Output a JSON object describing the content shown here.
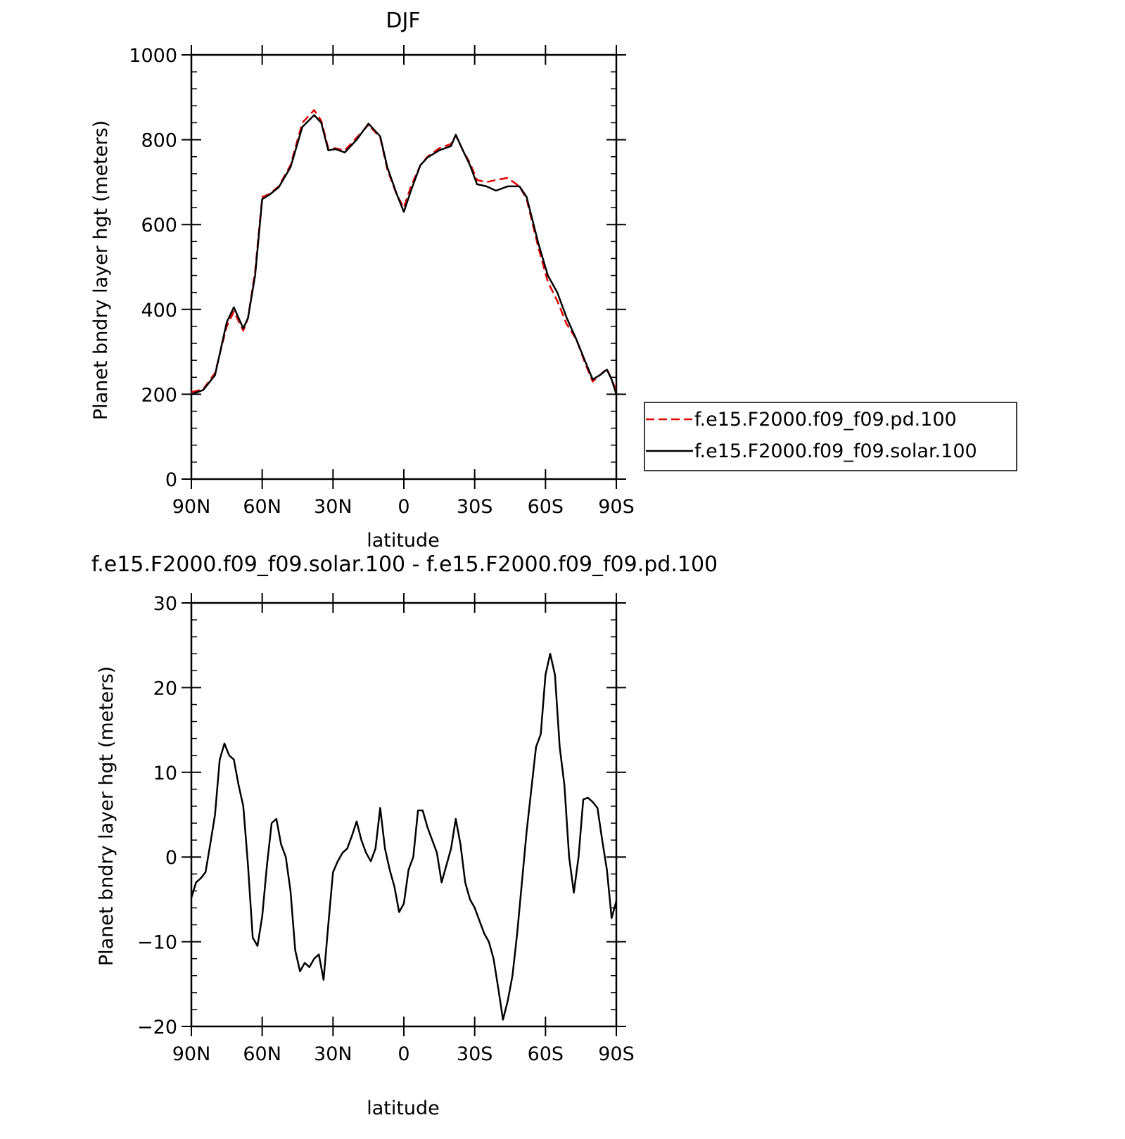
{
  "chart_data": [
    {
      "type": "line",
      "title": "DJF",
      "xlabel": "latitude",
      "ylabel": "Planet bndry layer hgt (meters)",
      "x_tick_labels": [
        "90N",
        "60N",
        "30N",
        "0",
        "30S",
        "60S",
        "90S"
      ],
      "x_tick_values": [
        90,
        60,
        30,
        0,
        -30,
        -60,
        -90
      ],
      "xlim": [
        90,
        -90
      ],
      "ylim": [
        0,
        1000
      ],
      "y_ticks": [
        0,
        200,
        400,
        600,
        800,
        1000
      ],
      "grid": false,
      "legend": "right",
      "x": [
        90,
        85,
        80,
        75,
        72,
        68,
        66,
        63,
        60,
        57,
        53,
        48,
        43,
        38,
        35,
        32,
        29,
        25,
        20,
        15,
        10,
        7,
        3,
        0,
        -3,
        -7,
        -10,
        -15,
        -20,
        -22,
        -25,
        -28,
        -31,
        -35,
        -39,
        -44,
        -49,
        -52,
        -57,
        -61,
        -65,
        -69,
        -73,
        -77,
        -80,
        -83,
        -86,
        -88,
        -90
      ],
      "series": [
        {
          "name": "f.e15.F2000.f09_f09.pd.100",
          "color": "#e00000",
          "dash": "dashed",
          "values": [
            205,
            212,
            250,
            360,
            395,
            350,
            380,
            490,
            665,
            672,
            690,
            740,
            840,
            870,
            845,
            780,
            780,
            775,
            805,
            835,
            805,
            730,
            670,
            640,
            690,
            740,
            760,
            780,
            790,
            810,
            775,
            745,
            705,
            700,
            705,
            710,
            690,
            660,
            545,
            465,
            420,
            365,
            330,
            270,
            230,
            245,
            260,
            235,
            208
          ]
        },
        {
          "name": "f.e15.F2000.f09_f09.solar.100",
          "color": "#000000",
          "dash": "solid",
          "values": [
            200,
            210,
            245,
            370,
            405,
            355,
            380,
            480,
            660,
            670,
            688,
            735,
            830,
            858,
            840,
            775,
            778,
            770,
            800,
            838,
            808,
            735,
            672,
            630,
            680,
            740,
            758,
            775,
            785,
            812,
            775,
            740,
            695,
            690,
            680,
            690,
            690,
            665,
            555,
            480,
            440,
            380,
            330,
            275,
            235,
            245,
            258,
            235,
            200
          ]
        }
      ]
    },
    {
      "type": "line",
      "title": "f.e15.F2000.f09_f09.solar.100 - f.e15.F2000.f09_f09.pd.100",
      "xlabel": "latitude",
      "ylabel": "Planet bndry layer hgt (meters)",
      "x_tick_labels": [
        "90N",
        "60N",
        "30N",
        "0",
        "30S",
        "60S",
        "90S"
      ],
      "x_tick_values": [
        90,
        60,
        30,
        0,
        -30,
        -60,
        -90
      ],
      "xlim": [
        90,
        -90
      ],
      "ylim": [
        -20,
        30
      ],
      "y_ticks": [
        -20,
        -10,
        0,
        10,
        20,
        30
      ],
      "grid": false,
      "x": [
        90,
        88,
        86,
        84,
        82,
        80,
        78,
        76,
        74,
        72,
        70,
        68,
        66,
        64,
        62,
        60,
        58,
        56,
        54,
        52,
        50,
        48,
        46,
        44,
        42,
        40,
        38,
        36,
        34,
        32,
        30,
        28,
        26,
        24,
        22,
        20,
        18,
        16,
        14,
        12,
        10,
        8,
        6,
        4,
        2,
        0,
        -2,
        -4,
        -6,
        -8,
        -10,
        -12,
        -14,
        -16,
        -18,
        -20,
        -22,
        -24,
        -26,
        -28,
        -30,
        -32,
        -34,
        -36,
        -38,
        -40,
        -42,
        -44,
        -46,
        -48,
        -50,
        -52,
        -54,
        -56,
        -58,
        -60,
        -62,
        -64,
        -66,
        -68,
        -70,
        -72,
        -74,
        -76,
        -78,
        -80,
        -82,
        -84,
        -86,
        -88,
        -90
      ],
      "series": [
        {
          "color": "#000000",
          "dash": "solid",
          "values": [
            -4.8,
            -3.0,
            -2.5,
            -1.8,
            1.5,
            5.0,
            11.5,
            13.4,
            12.0,
            11.5,
            8.5,
            6.0,
            -1.0,
            -9.5,
            -10.5,
            -7.0,
            -1.0,
            4.0,
            4.5,
            1.5,
            0.0,
            -4.0,
            -11.0,
            -13.5,
            -12.5,
            -13.0,
            -12.0,
            -11.5,
            -14.5,
            -8.0,
            -1.8,
            -0.5,
            0.5,
            1.0,
            2.5,
            4.2,
            2.0,
            0.5,
            -0.5,
            1.0,
            5.8,
            1.0,
            -1.5,
            -3.5,
            -6.5,
            -5.5,
            -1.5,
            0.0,
            5.5,
            5.5,
            3.5,
            2.0,
            0.5,
            -3.0,
            -1.0,
            1.0,
            4.5,
            1.5,
            -3.0,
            -5.0,
            -6.0,
            -7.5,
            -9.0,
            -10.0,
            -12.0,
            -15.5,
            -19.2,
            -17.0,
            -14.0,
            -9.0,
            -3.0,
            3.0,
            8.0,
            13.0,
            14.5,
            21.5,
            24.0,
            21.5,
            13.0,
            8.5,
            0.0,
            -4.2,
            0.0,
            6.8,
            7.0,
            6.5,
            5.8,
            2.0,
            -1.5,
            -7.2,
            -5.2
          ]
        }
      ]
    }
  ]
}
